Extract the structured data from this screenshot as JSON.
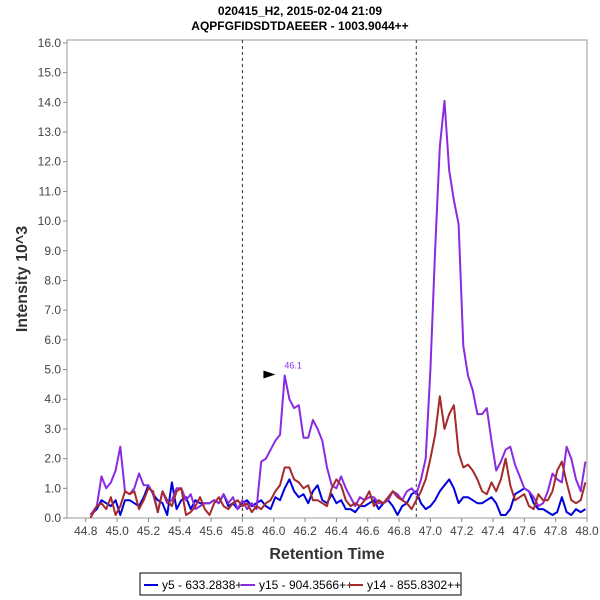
{
  "chart_data": {
    "type": "line",
    "title": "020415_H2, 2015-02-04 21:09",
    "subtitle": "AQPFGFIDSDTDAEEER - 1003.9044++",
    "xlabel": "Retention Time",
    "ylabel": "Intensity 10^3",
    "xlim": [
      44.68,
      48.0
    ],
    "ylim": [
      0,
      16.1
    ],
    "x_ticks": [
      "44.8",
      "45.0",
      "45.2",
      "45.4",
      "45.6",
      "45.8",
      "46.0",
      "46.2",
      "46.4",
      "46.6",
      "46.8",
      "47.0",
      "47.2",
      "47.4",
      "47.6",
      "47.8",
      "48.0"
    ],
    "y_ticks": [
      "0.0",
      "1.0",
      "2.0",
      "3.0",
      "4.0",
      "5.0",
      "6.0",
      "7.0",
      "8.0",
      "9.0",
      "10.0",
      "11.0",
      "12.0",
      "13.0",
      "14.0",
      "15.0",
      "16.0"
    ],
    "vertical_markers": [
      45.8,
      46.91
    ],
    "peak_annotation": {
      "x": 46.1,
      "y": 4.8,
      "label": "46.1"
    },
    "legend_position": "bottom",
    "series": [
      {
        "name": "y5 - 633.2838+",
        "color": "#0000dd",
        "x": [
          44.83,
          44.87,
          44.9,
          44.93,
          44.96,
          44.99,
          45.02,
          45.05,
          45.08,
          45.11,
          45.14,
          45.17,
          45.2,
          45.23,
          45.26,
          45.29,
          45.32,
          45.35,
          45.38,
          45.41,
          45.44,
          45.47,
          45.5,
          45.53,
          45.56,
          45.59,
          45.62,
          45.65,
          45.68,
          45.71,
          45.74,
          45.77,
          45.8,
          45.83,
          45.86,
          45.89,
          45.92,
          45.95,
          45.98,
          46.01,
          46.04,
          46.07,
          46.1,
          46.13,
          46.16,
          46.19,
          46.22,
          46.25,
          46.28,
          46.31,
          46.34,
          46.37,
          46.4,
          46.43,
          46.46,
          46.49,
          46.52,
          46.55,
          46.58,
          46.61,
          46.64,
          46.67,
          46.7,
          46.73,
          46.76,
          46.79,
          46.82,
          46.85,
          46.88,
          46.91,
          46.94,
          46.97,
          47.0,
          47.03,
          47.06,
          47.09,
          47.12,
          47.15,
          47.18,
          47.21,
          47.24,
          47.27,
          47.3,
          47.33,
          47.36,
          47.39,
          47.42,
          47.45,
          47.48,
          47.51,
          47.54,
          47.57,
          47.6,
          47.63,
          47.66,
          47.69,
          47.72,
          47.75,
          47.78,
          47.81,
          47.84,
          47.87,
          47.9,
          47.93,
          47.96,
          47.99
        ],
        "y": [
          0.1,
          0.3,
          0.6,
          0.5,
          0.4,
          0.6,
          0.1,
          0.6,
          0.6,
          0.5,
          0.4,
          0.7,
          1.1,
          0.8,
          0.6,
          0.5,
          0.1,
          1.2,
          0.3,
          0.6,
          0.7,
          0.3,
          0.6,
          0.5,
          0.5,
          0.5,
          0.6,
          0.5,
          0.8,
          0.4,
          0.5,
          0.3,
          0.5,
          0.6,
          0.4,
          0.5,
          0.6,
          0.4,
          0.3,
          0.7,
          0.6,
          1.0,
          1.3,
          0.9,
          0.7,
          0.8,
          0.5,
          0.9,
          1.1,
          0.6,
          0.5,
          0.8,
          0.5,
          0.6,
          0.3,
          0.3,
          0.2,
          0.4,
          0.4,
          0.5,
          0.6,
          0.3,
          0.5,
          0.6,
          0.4,
          0.1,
          0.4,
          0.5,
          0.8,
          0.9,
          0.5,
          0.3,
          0.4,
          0.6,
          0.9,
          1.1,
          1.3,
          1.0,
          0.5,
          0.7,
          0.7,
          0.6,
          0.5,
          0.5,
          0.6,
          0.7,
          0.5,
          0.1,
          0.1,
          0.3,
          0.8,
          0.9,
          1.0,
          0.9,
          0.5,
          0.3,
          0.3,
          0.2,
          0.1,
          0.2,
          0.7,
          0.2,
          0.1,
          0.3,
          0.2,
          0.3
        ]
      },
      {
        "name": "y15 - 904.3566++",
        "color": "#8a2be2",
        "x": [
          44.83,
          44.87,
          44.9,
          44.93,
          44.96,
          44.99,
          45.02,
          45.05,
          45.08,
          45.11,
          45.14,
          45.17,
          45.2,
          45.23,
          45.26,
          45.29,
          45.32,
          45.35,
          45.38,
          45.41,
          45.44,
          45.47,
          45.5,
          45.53,
          45.56,
          45.59,
          45.62,
          45.65,
          45.68,
          45.71,
          45.74,
          45.77,
          45.8,
          45.83,
          45.86,
          45.89,
          45.92,
          45.95,
          45.98,
          46.01,
          46.04,
          46.07,
          46.1,
          46.13,
          46.16,
          46.19,
          46.22,
          46.25,
          46.28,
          46.31,
          46.34,
          46.37,
          46.4,
          46.43,
          46.46,
          46.49,
          46.52,
          46.55,
          46.58,
          46.61,
          46.64,
          46.67,
          46.7,
          46.73,
          46.76,
          46.79,
          46.82,
          46.85,
          46.88,
          46.91,
          46.94,
          46.97,
          47.0,
          47.03,
          47.06,
          47.09,
          47.12,
          47.15,
          47.18,
          47.21,
          47.24,
          47.27,
          47.3,
          47.33,
          47.36,
          47.39,
          47.42,
          47.45,
          47.48,
          47.51,
          47.54,
          47.57,
          47.6,
          47.63,
          47.66,
          47.69,
          47.72,
          47.75,
          47.78,
          47.81,
          47.84,
          47.87,
          47.9,
          47.93,
          47.96,
          47.99
        ],
        "y": [
          0.1,
          0.4,
          1.4,
          1.0,
          1.2,
          1.6,
          2.4,
          0.9,
          0.8,
          1.0,
          1.5,
          1.1,
          1.1,
          0.8,
          0.2,
          0.9,
          0.5,
          0.6,
          1.0,
          1.0,
          0.6,
          0.8,
          0.3,
          0.4,
          0.5,
          0.5,
          0.6,
          0.5,
          0.8,
          0.5,
          0.7,
          0.3,
          0.6,
          0.3,
          0.5,
          0.3,
          1.9,
          2.0,
          2.3,
          2.6,
          2.8,
          4.8,
          4.0,
          3.7,
          3.8,
          2.7,
          2.7,
          3.3,
          3.0,
          2.6,
          1.7,
          1.1,
          1.0,
          1.4,
          1.0,
          0.7,
          0.4,
          0.7,
          0.6,
          0.7,
          0.7,
          0.5,
          0.5,
          0.6,
          0.9,
          0.8,
          0.6,
          0.9,
          1.0,
          0.8,
          1.3,
          2.0,
          5.0,
          9.0,
          12.5,
          14.05,
          11.7,
          10.7,
          9.9,
          5.8,
          4.8,
          4.3,
          3.5,
          3.5,
          3.7,
          2.6,
          1.6,
          1.9,
          2.3,
          2.4,
          1.8,
          1.4,
          1.0,
          0.9,
          0.7,
          0.4,
          0.5,
          0.9,
          1.5,
          1.3,
          1.2,
          2.4,
          2.0,
          1.3,
          0.9,
          1.9
        ]
      },
      {
        "name": "y14 - 855.8302++",
        "color": "#a52a2a",
        "x": [
          44.83,
          44.87,
          44.9,
          44.93,
          44.96,
          44.99,
          45.02,
          45.05,
          45.08,
          45.11,
          45.14,
          45.17,
          45.2,
          45.23,
          45.26,
          45.29,
          45.32,
          45.35,
          45.38,
          45.41,
          45.44,
          45.47,
          45.5,
          45.53,
          45.56,
          45.59,
          45.62,
          45.65,
          45.68,
          45.71,
          45.74,
          45.77,
          45.8,
          45.83,
          45.86,
          45.89,
          45.92,
          45.95,
          45.98,
          46.01,
          46.04,
          46.07,
          46.1,
          46.13,
          46.16,
          46.19,
          46.22,
          46.25,
          46.28,
          46.31,
          46.34,
          46.37,
          46.4,
          46.43,
          46.46,
          46.49,
          46.52,
          46.55,
          46.58,
          46.61,
          46.64,
          46.67,
          46.7,
          46.73,
          46.76,
          46.79,
          46.82,
          46.85,
          46.88,
          46.91,
          46.94,
          46.97,
          47.0,
          47.03,
          47.06,
          47.09,
          47.12,
          47.15,
          47.18,
          47.21,
          47.24,
          47.27,
          47.3,
          47.33,
          47.36,
          47.39,
          47.42,
          47.45,
          47.48,
          47.51,
          47.54,
          47.57,
          47.6,
          47.63,
          47.66,
          47.69,
          47.72,
          47.75,
          47.78,
          47.81,
          47.84,
          47.87,
          47.9,
          47.93,
          47.96,
          47.99
        ],
        "y": [
          0.0,
          0.4,
          0.5,
          0.3,
          0.7,
          0.1,
          0.4,
          0.9,
          0.8,
          0.9,
          0.3,
          0.6,
          1.0,
          0.9,
          0.2,
          0.9,
          0.6,
          0.4,
          0.9,
          1.0,
          0.1,
          0.2,
          0.4,
          0.7,
          0.3,
          0.1,
          0.5,
          0.7,
          0.4,
          0.3,
          0.5,
          0.6,
          0.4,
          0.5,
          0.2,
          0.4,
          0.3,
          0.5,
          0.6,
          0.9,
          1.1,
          1.7,
          1.7,
          1.3,
          1.2,
          1.0,
          1.1,
          0.6,
          0.6,
          0.5,
          0.4,
          1.0,
          1.3,
          1.1,
          0.6,
          0.4,
          0.5,
          0.4,
          0.6,
          0.9,
          0.4,
          0.6,
          0.5,
          0.7,
          0.9,
          0.7,
          0.6,
          0.5,
          0.3,
          0.6,
          0.9,
          1.3,
          2.0,
          2.8,
          4.1,
          3.0,
          3.5,
          3.8,
          2.2,
          1.7,
          1.8,
          1.6,
          1.3,
          0.9,
          0.8,
          1.2,
          0.9,
          1.3,
          2.0,
          1.1,
          0.6,
          0.7,
          0.8,
          0.4,
          0.3,
          0.8,
          0.6,
          0.6,
          0.9,
          1.6,
          1.9,
          1.2,
          0.6,
          0.5,
          0.6,
          1.2
        ]
      }
    ]
  }
}
